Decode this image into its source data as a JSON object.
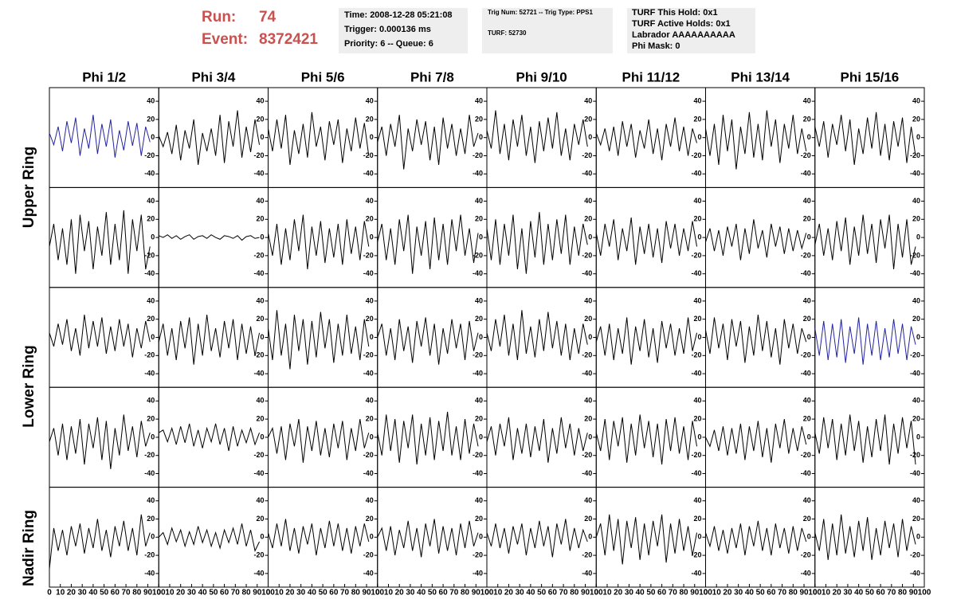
{
  "header": {
    "run_label": "Run:",
    "run": "74",
    "event_label": "Event:",
    "event": "8372421",
    "box1": [
      "Time: 2008-12-28 05:21:08",
      "Trigger: 0.000136 ms",
      "Priority: 6 -- Queue: 6"
    ],
    "box2": [
      "Trig Num: 52721 -- Trig Type: PPS1",
      "TURF: 52730"
    ],
    "box3": [
      "TURF This Hold: 0x1",
      "TURF Active Holds: 0x1",
      "Labrador AAAAAAAAAA",
      "Phi Mask: 0"
    ]
  },
  "chart_data": {
    "type": "line",
    "columns": [
      "Phi 1/2",
      "Phi 3/4",
      "Phi 5/6",
      "Phi 7/8",
      "Phi 9/10",
      "Phi 11/12",
      "Phi 13/14",
      "Phi 15/16"
    ],
    "row_labels": [
      "Upper Ring",
      "Lower Ring",
      "Nadir Ring"
    ],
    "xlim": [
      0,
      100
    ],
    "xticks": [
      0,
      10,
      20,
      30,
      40,
      50,
      60,
      70,
      80,
      90,
      100
    ],
    "ylim": [
      -55,
      55
    ],
    "yticks": [
      40,
      20,
      0,
      -20,
      -40
    ],
    "x": [
      0,
      4,
      8,
      12,
      16,
      20,
      24,
      28,
      32,
      36,
      40,
      44,
      48,
      52,
      56,
      60,
      64,
      68,
      72,
      76,
      80,
      84,
      88,
      92
    ],
    "series": [
      {
        "color": "#2323a0",
        "values": [
          5,
          -8,
          12,
          -15,
          18,
          -6,
          22,
          -20,
          10,
          -12,
          25,
          -18,
          15,
          -10,
          20,
          -22,
          8,
          -14,
          18,
          -9,
          16,
          -20,
          12,
          -5
        ]
      },
      {
        "color": "#000000",
        "values": [
          2,
          -10,
          6,
          -18,
          14,
          -25,
          8,
          -12,
          20,
          -30,
          5,
          -15,
          10,
          -20,
          25,
          -28,
          18,
          -10,
          30,
          -22,
          12,
          -16,
          20,
          -8
        ]
      },
      {
        "color": "#000000",
        "values": [
          10,
          -15,
          20,
          -12,
          25,
          -30,
          8,
          -18,
          15,
          -22,
          28,
          -10,
          12,
          -25,
          18,
          -8,
          20,
          -28,
          10,
          -15,
          22,
          -12,
          16,
          -20
        ]
      },
      {
        "color": "#000000",
        "values": [
          -5,
          12,
          -20,
          15,
          -10,
          25,
          -35,
          10,
          -15,
          20,
          -8,
          18,
          -25,
          12,
          -30,
          22,
          -12,
          15,
          -20,
          10,
          -18,
          25,
          -10,
          5
        ]
      },
      {
        "color": "#000000",
        "values": [
          8,
          -12,
          30,
          -18,
          15,
          -25,
          20,
          -10,
          25,
          -20,
          12,
          -28,
          18,
          -15,
          22,
          -12,
          28,
          -20,
          10,
          -25,
          15,
          -8,
          20,
          -10
        ]
      },
      {
        "color": "#000000",
        "values": [
          5,
          -8,
          10,
          -15,
          12,
          -20,
          18,
          -10,
          15,
          -22,
          8,
          -12,
          20,
          -18,
          10,
          -25,
          15,
          -10,
          22,
          -15,
          12,
          -20,
          10,
          -6
        ]
      },
      {
        "color": "#000000",
        "values": [
          10,
          -20,
          15,
          -30,
          25,
          -15,
          20,
          -35,
          12,
          -18,
          28,
          -22,
          15,
          -25,
          30,
          -10,
          20,
          -28,
          15,
          -12,
          25,
          -18,
          10,
          -15
        ]
      },
      {
        "color": "#000000",
        "values": [
          12,
          -10,
          18,
          -22,
          15,
          -8,
          25,
          -15,
          20,
          -30,
          10,
          -18,
          22,
          -12,
          28,
          -20,
          15,
          -25,
          18,
          -10,
          22,
          -28,
          12,
          -20
        ]
      },
      {
        "color": "#000000",
        "values": [
          -10,
          15,
          -25,
          10,
          -30,
          20,
          -40,
          25,
          -15,
          18,
          -35,
          12,
          -20,
          28,
          -30,
          15,
          -25,
          30,
          -40,
          20,
          -15,
          25,
          -35,
          -10
        ]
      },
      {
        "color": "#000000",
        "values": [
          2,
          0,
          3,
          -1,
          2,
          -2,
          1,
          3,
          -2,
          1,
          2,
          -1,
          3,
          0,
          -2,
          2,
          1,
          -1,
          2,
          -3,
          1,
          2,
          -1,
          0
        ]
      },
      {
        "color": "#000000",
        "values": [
          5,
          -20,
          15,
          -30,
          10,
          -25,
          20,
          -15,
          25,
          -35,
          12,
          -20,
          18,
          -28,
          10,
          -22,
          15,
          -30,
          20,
          -18,
          12,
          -25,
          18,
          -10
        ]
      },
      {
        "color": "#000000",
        "values": [
          -5,
          15,
          -25,
          10,
          -30,
          20,
          -15,
          25,
          -40,
          12,
          -20,
          18,
          -35,
          22,
          -25,
          15,
          -30,
          20,
          -15,
          25,
          -20,
          10,
          -28,
          5
        ]
      },
      {
        "color": "#000000",
        "values": [
          10,
          -25,
          20,
          -30,
          15,
          -20,
          25,
          -35,
          10,
          -40,
          18,
          -22,
          28,
          -30,
          15,
          -25,
          20,
          -18,
          25,
          -30,
          12,
          -20,
          15,
          -8
        ]
      },
      {
        "color": "#000000",
        "values": [
          5,
          -20,
          15,
          -10,
          20,
          -25,
          10,
          -15,
          22,
          -30,
          12,
          -18,
          15,
          -22,
          10,
          -28,
          18,
          -12,
          15,
          -20,
          10,
          -15,
          18,
          -10
        ]
      },
      {
        "color": "#000000",
        "values": [
          -5,
          10,
          -15,
          8,
          -20,
          12,
          -10,
          15,
          -25,
          10,
          -18,
          20,
          -12,
          8,
          -22,
          15,
          -10,
          12,
          -18,
          10,
          -15,
          8,
          -12,
          5
        ]
      },
      {
        "color": "#000000",
        "values": [
          -8,
          15,
          -20,
          10,
          -25,
          18,
          -15,
          22,
          -30,
          12,
          -20,
          25,
          -18,
          15,
          -28,
          20,
          -12,
          25,
          -35,
          15,
          -22,
          20,
          -30,
          -10
        ]
      },
      {
        "color": "#000000",
        "values": [
          5,
          -10,
          15,
          -8,
          20,
          -15,
          10,
          -20,
          25,
          -12,
          18,
          -10,
          22,
          -18,
          12,
          -15,
          20,
          -10,
          15,
          -22,
          10,
          -12,
          18,
          -5
        ]
      },
      {
        "color": "#000000",
        "values": [
          -5,
          15,
          -20,
          10,
          -25,
          18,
          -12,
          22,
          -30,
          15,
          -20,
          25,
          -15,
          10,
          -22,
          18,
          -12,
          20,
          -25,
          15,
          -18,
          12,
          -20,
          5
        ]
      },
      {
        "color": "#000000",
        "values": [
          10,
          -25,
          30,
          -20,
          15,
          -35,
          25,
          -15,
          20,
          -30,
          18,
          -22,
          28,
          -12,
          20,
          -28,
          15,
          -20,
          25,
          -18,
          12,
          -25,
          20,
          -10
        ]
      },
      {
        "color": "#000000",
        "values": [
          0,
          15,
          -20,
          10,
          -25,
          20,
          -15,
          12,
          -28,
          18,
          -10,
          22,
          -20,
          15,
          -30,
          10,
          -18,
          20,
          -12,
          15,
          -25,
          18,
          -15,
          5
        ]
      },
      {
        "color": "#000000",
        "values": [
          5,
          -15,
          20,
          -10,
          25,
          -20,
          15,
          -25,
          30,
          -18,
          12,
          -22,
          20,
          -15,
          28,
          -12,
          18,
          -20,
          15,
          -25,
          10,
          -18,
          15,
          -8
        ]
      },
      {
        "color": "#000000",
        "values": [
          -5,
          12,
          -20,
          15,
          -25,
          10,
          -18,
          22,
          -30,
          12,
          -15,
          20,
          -22,
          10,
          -28,
          18,
          -12,
          15,
          -20,
          10,
          -18,
          22,
          -15,
          5
        ]
      },
      {
        "color": "#000000",
        "values": [
          8,
          -18,
          22,
          -12,
          15,
          -25,
          20,
          -10,
          18,
          -28,
          12,
          -20,
          25,
          -15,
          18,
          -22,
          10,
          -30,
          20,
          -12,
          15,
          -18,
          10,
          -5
        ]
      },
      {
        "color": "#2323a0",
        "values": [
          10,
          -20,
          18,
          -25,
          15,
          -22,
          20,
          -28,
          12,
          -18,
          22,
          -30,
          15,
          -20,
          18,
          -25,
          10,
          -22,
          20,
          -18,
          15,
          -25,
          12,
          -8
        ]
      },
      {
        "color": "#000000",
        "values": [
          -5,
          10,
          -20,
          15,
          -25,
          12,
          -18,
          20,
          -30,
          15,
          -12,
          22,
          -25,
          18,
          -35,
          10,
          -20,
          25,
          -15,
          12,
          -22,
          18,
          -10,
          5
        ]
      },
      {
        "color": "#000000",
        "values": [
          5,
          8,
          -5,
          10,
          -8,
          12,
          -6,
          15,
          -10,
          8,
          -12,
          10,
          -5,
          15,
          -8,
          10,
          -15,
          12,
          -10,
          8,
          -6,
          10,
          -8,
          5
        ]
      },
      {
        "color": "#000000",
        "values": [
          0,
          10,
          -18,
          12,
          -25,
          15,
          -10,
          20,
          -28,
          12,
          -15,
          18,
          -20,
          10,
          -22,
          15,
          -12,
          18,
          -25,
          10,
          -15,
          20,
          -12,
          5
        ]
      },
      {
        "color": "#000000",
        "values": [
          5,
          -20,
          25,
          -15,
          20,
          -28,
          18,
          -12,
          25,
          -30,
          15,
          -20,
          22,
          -25,
          18,
          -15,
          28,
          -20,
          12,
          -25,
          20,
          -18,
          15,
          -10
        ]
      },
      {
        "color": "#000000",
        "values": [
          -5,
          12,
          -20,
          15,
          -10,
          22,
          -25,
          10,
          -18,
          15,
          -22,
          12,
          -15,
          20,
          -28,
          10,
          -18,
          22,
          -12,
          15,
          -20,
          10,
          -15,
          5
        ]
      },
      {
        "color": "#000000",
        "values": [
          5,
          -15,
          20,
          -25,
          18,
          -10,
          22,
          -28,
          15,
          -20,
          25,
          -12,
          18,
          -22,
          15,
          -30,
          20,
          -15,
          22,
          -18,
          12,
          -25,
          18,
          -10
        ]
      },
      {
        "color": "#000000",
        "values": [
          0,
          -10,
          8,
          -15,
          12,
          -20,
          10,
          -18,
          15,
          -25,
          12,
          -15,
          18,
          -22,
          10,
          -28,
          15,
          -12,
          20,
          -18,
          10,
          -15,
          12,
          -8
        ]
      },
      {
        "color": "#000000",
        "values": [
          5,
          -18,
          22,
          -12,
          20,
          -25,
          15,
          -20,
          25,
          -15,
          18,
          -28,
          12,
          -22,
          20,
          -15,
          25,
          -30,
          15,
          -18,
          22,
          -12,
          18,
          -30
        ]
      },
      {
        "color": "#000000",
        "values": [
          -35,
          10,
          -15,
          8,
          -20,
          12,
          -10,
          15,
          -18,
          10,
          -12,
          20,
          -15,
          8,
          -22,
          12,
          -10,
          18,
          -15,
          10,
          -20,
          25,
          -10,
          5
        ]
      },
      {
        "color": "#000000",
        "values": [
          0,
          5,
          -8,
          10,
          -5,
          8,
          -10,
          6,
          -8,
          12,
          -6,
          8,
          -10,
          5,
          -12,
          8,
          -6,
          10,
          -8,
          15,
          -10,
          8,
          -15,
          -5
        ]
      },
      {
        "color": "#000000",
        "values": [
          5,
          -12,
          15,
          -10,
          20,
          -15,
          10,
          -18,
          12,
          -8,
          15,
          -20,
          10,
          -12,
          18,
          -10,
          15,
          -15,
          10,
          -18,
          12,
          -10,
          15,
          -5
        ]
      },
      {
        "color": "#000000",
        "values": [
          0,
          10,
          -15,
          12,
          -20,
          8,
          -12,
          18,
          -15,
          10,
          -22,
          15,
          -10,
          20,
          -18,
          12,
          -15,
          10,
          -20,
          15,
          -12,
          18,
          -10,
          5
        ]
      },
      {
        "color": "#000000",
        "values": [
          5,
          -10,
          15,
          -12,
          10,
          -18,
          12,
          -8,
          15,
          -20,
          10,
          -12,
          18,
          -10,
          12,
          -22,
          15,
          -8,
          20,
          -15,
          10,
          -12,
          8,
          -5
        ]
      },
      {
        "color": "#000000",
        "values": [
          0,
          15,
          -20,
          25,
          -15,
          20,
          -30,
          18,
          -12,
          22,
          -25,
          15,
          -20,
          18,
          -10,
          25,
          -28,
          15,
          -18,
          20,
          -15,
          12,
          -20,
          5
        ]
      },
      {
        "color": "#000000",
        "values": [
          5,
          -10,
          12,
          -15,
          8,
          -18,
          10,
          -12,
          15,
          -20,
          12,
          -10,
          18,
          -15,
          10,
          -20,
          15,
          -12,
          10,
          -18,
          12,
          -15,
          10,
          -5
        ]
      },
      {
        "color": "#000000",
        "values": [
          5,
          -15,
          20,
          -25,
          15,
          -20,
          25,
          -18,
          12,
          -22,
          18,
          -15,
          22,
          -25,
          10,
          -20,
          18,
          -12,
          15,
          -22,
          20,
          -15,
          12,
          -8
        ]
      }
    ]
  }
}
